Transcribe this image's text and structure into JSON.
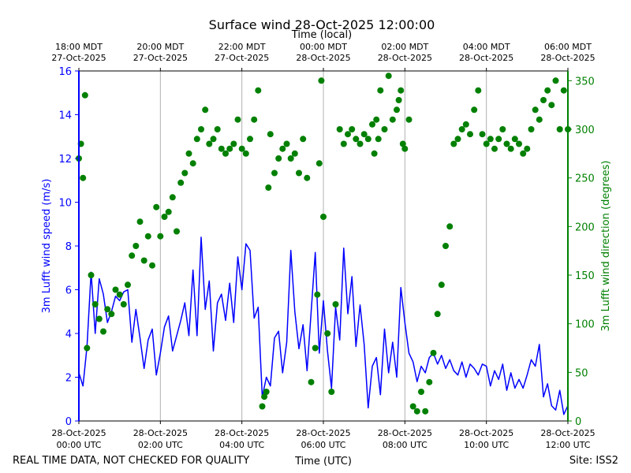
{
  "chart_data": {
    "type": "line",
    "title": "Surface wind 28-Oct-2025 12:00:00",
    "xlabel": "Time (UTC)",
    "top_xlabel": "Time (local)",
    "ylabel_left": "3m Lufft wind speed (m/s)",
    "ylabel_right": "3m Lufft wind direction (degrees)",
    "footer_left": "REAL TIME DATA, NOT CHECKED FOR QUALITY",
    "footer_right": "Site: ISS2",
    "x_range_hours": [
      0,
      12
    ],
    "ylim_left": [
      0,
      16
    ],
    "ylim_right": [
      0,
      360
    ],
    "grid": "vertical",
    "colors": {
      "speed": "#0000ff",
      "direction": "#008000",
      "grid": "#b0b0b0",
      "frame": "#000000"
    },
    "bottom_ticks": [
      {
        "hour": 0,
        "line1": "28-Oct-2025",
        "line2": "00:00 UTC"
      },
      {
        "hour": 2,
        "line1": "28-Oct-2025",
        "line2": "02:00 UTC"
      },
      {
        "hour": 4,
        "line1": "28-Oct-2025",
        "line2": "04:00 UTC"
      },
      {
        "hour": 6,
        "line1": "28-Oct-2025",
        "line2": "06:00 UTC"
      },
      {
        "hour": 8,
        "line1": "28-Oct-2025",
        "line2": "08:00 UTC"
      },
      {
        "hour": 10,
        "line1": "28-Oct-2025",
        "line2": "10:00 UTC"
      },
      {
        "hour": 12,
        "line1": "28-Oct-2025",
        "line2": "12:00 UTC"
      }
    ],
    "top_ticks": [
      {
        "hour": 0,
        "line1": "18:00 MDT",
        "line2": "27-Oct-2025"
      },
      {
        "hour": 2,
        "line1": "20:00 MDT",
        "line2": "27-Oct-2025"
      },
      {
        "hour": 4,
        "line1": "22:00 MDT",
        "line2": "27-Oct-2025"
      },
      {
        "hour": 6,
        "line1": "00:00 MDT",
        "line2": "28-Oct-2025"
      },
      {
        "hour": 8,
        "line1": "02:00 MDT",
        "line2": "28-Oct-2025"
      },
      {
        "hour": 10,
        "line1": "04:00 MDT",
        "line2": "28-Oct-2025"
      },
      {
        "hour": 12,
        "line1": "06:00 MDT",
        "line2": "28-Oct-2025"
      }
    ],
    "left_ticks": [
      0,
      2,
      4,
      6,
      8,
      10,
      12,
      14,
      16
    ],
    "right_ticks": [
      0,
      50,
      100,
      150,
      200,
      250,
      300,
      350
    ],
    "series": [
      {
        "name": "3m Lufft wind speed",
        "axis": "left",
        "style": "line",
        "x": [
          0.0,
          0.1,
          0.2,
          0.3,
          0.4,
          0.5,
          0.6,
          0.7,
          0.8,
          0.9,
          1.0,
          1.1,
          1.2,
          1.3,
          1.4,
          1.5,
          1.6,
          1.7,
          1.8,
          1.9,
          2.0,
          2.1,
          2.2,
          2.3,
          2.4,
          2.5,
          2.6,
          2.7,
          2.8,
          2.9,
          3.0,
          3.1,
          3.2,
          3.3,
          3.4,
          3.5,
          3.6,
          3.7,
          3.8,
          3.9,
          4.0,
          4.1,
          4.2,
          4.3,
          4.4,
          4.5,
          4.6,
          4.7,
          4.8,
          4.9,
          5.0,
          5.1,
          5.2,
          5.3,
          5.4,
          5.5,
          5.6,
          5.7,
          5.8,
          5.9,
          6.0,
          6.1,
          6.2,
          6.3,
          6.4,
          6.5,
          6.6,
          6.7,
          6.8,
          6.9,
          7.0,
          7.1,
          7.2,
          7.3,
          7.4,
          7.5,
          7.6,
          7.7,
          7.8,
          7.9,
          8.0,
          8.1,
          8.2,
          8.3,
          8.4,
          8.5,
          8.6,
          8.7,
          8.8,
          8.9,
          9.0,
          9.1,
          9.2,
          9.3,
          9.4,
          9.5,
          9.6,
          9.7,
          9.8,
          9.9,
          10.0,
          10.1,
          10.2,
          10.3,
          10.4,
          10.5,
          10.6,
          10.7,
          10.8,
          10.9,
          11.0,
          11.1,
          11.2,
          11.3,
          11.4,
          11.5,
          11.6,
          11.7,
          11.8,
          11.9,
          12.0
        ],
        "values": [
          2.2,
          1.6,
          3.4,
          6.8,
          4.0,
          6.5,
          5.8,
          4.5,
          5.0,
          5.7,
          5.5,
          5.9,
          6.0,
          3.6,
          5.1,
          3.8,
          2.4,
          3.7,
          4.2,
          2.1,
          3.1,
          4.3,
          4.8,
          3.2,
          3.9,
          4.6,
          5.4,
          3.9,
          6.9,
          3.9,
          8.4,
          5.1,
          6.4,
          3.2,
          5.4,
          5.8,
          4.6,
          6.3,
          4.5,
          7.5,
          6.0,
          8.1,
          7.8,
          4.7,
          5.2,
          1.1,
          2.0,
          1.6,
          3.8,
          4.1,
          2.2,
          3.6,
          7.8,
          5.0,
          3.3,
          4.4,
          2.3,
          5.0,
          7.7,
          3.1,
          5.5,
          3.2,
          1.5,
          5.2,
          3.7,
          7.9,
          4.9,
          6.6,
          3.4,
          5.3,
          3.5,
          0.6,
          2.5,
          2.9,
          1.2,
          4.2,
          2.2,
          3.6,
          2.0,
          6.1,
          4.5,
          3.1,
          2.7,
          1.8,
          2.5,
          2.2,
          2.9,
          3.1,
          2.6,
          3.0,
          2.4,
          2.8,
          2.3,
          2.1,
          2.7,
          2.0,
          2.6,
          2.4,
          2.1,
          2.6,
          2.5,
          1.6,
          2.3,
          1.9,
          2.6,
          1.4,
          2.2,
          1.5,
          1.9,
          1.5,
          2.1,
          2.8,
          2.5,
          3.5,
          1.1,
          1.7,
          0.7,
          0.5,
          1.4,
          0.3,
          0.7
        ]
      },
      {
        "name": "3m Lufft wind direction",
        "axis": "right",
        "style": "markers",
        "x": [
          0.0,
          0.05,
          0.1,
          0.15,
          0.2,
          0.3,
          0.4,
          0.5,
          0.6,
          0.7,
          0.8,
          0.9,
          1.0,
          1.1,
          1.2,
          1.3,
          1.4,
          1.5,
          1.6,
          1.7,
          1.8,
          1.9,
          2.0,
          2.1,
          2.2,
          2.3,
          2.4,
          2.5,
          2.6,
          2.7,
          2.8,
          2.9,
          3.0,
          3.1,
          3.2,
          3.3,
          3.4,
          3.5,
          3.6,
          3.7,
          3.8,
          3.9,
          4.0,
          4.1,
          4.2,
          4.3,
          4.4,
          4.5,
          4.55,
          4.6,
          4.65,
          4.7,
          4.8,
          4.9,
          5.0,
          5.1,
          5.2,
          5.3,
          5.4,
          5.5,
          5.6,
          5.7,
          5.8,
          5.85,
          5.9,
          5.95,
          6.0,
          6.1,
          6.2,
          6.3,
          6.4,
          6.5,
          6.6,
          6.7,
          6.8,
          6.9,
          7.0,
          7.1,
          7.2,
          7.25,
          7.3,
          7.35,
          7.4,
          7.5,
          7.6,
          7.7,
          7.8,
          7.85,
          7.9,
          7.95,
          8.0,
          8.1,
          8.2,
          8.3,
          8.4,
          8.5,
          8.6,
          8.7,
          8.8,
          8.9,
          9.0,
          9.1,
          9.2,
          9.3,
          9.4,
          9.5,
          9.6,
          9.7,
          9.8,
          9.9,
          10.0,
          10.1,
          10.2,
          10.3,
          10.4,
          10.5,
          10.6,
          10.7,
          10.8,
          10.9,
          11.0,
          11.1,
          11.2,
          11.3,
          11.4,
          11.5,
          11.6,
          11.7,
          11.8,
          11.9,
          12.0
        ],
        "values": [
          270,
          285,
          250,
          335,
          75,
          150,
          120,
          105,
          92,
          115,
          110,
          135,
          130,
          120,
          140,
          170,
          180,
          205,
          165,
          190,
          160,
          220,
          190,
          210,
          215,
          230,
          195,
          245,
          255,
          275,
          265,
          290,
          300,
          320,
          285,
          290,
          300,
          280,
          275,
          280,
          285,
          310,
          280,
          275,
          290,
          310,
          340,
          15,
          25,
          30,
          240,
          295,
          255,
          270,
          280,
          285,
          270,
          275,
          255,
          290,
          250,
          40,
          75,
          130,
          265,
          350,
          210,
          90,
          30,
          120,
          300,
          285,
          295,
          300,
          290,
          285,
          295,
          290,
          305,
          275,
          310,
          290,
          340,
          300,
          355,
          310,
          320,
          330,
          340,
          285,
          280,
          310,
          15,
          10,
          30,
          10,
          40,
          70,
          110,
          140,
          180,
          200,
          285,
          290,
          300,
          305,
          295,
          320,
          340,
          295,
          285,
          290,
          280,
          290,
          300,
          285,
          280,
          290,
          285,
          275,
          280,
          300,
          320,
          310,
          330,
          340,
          325,
          350,
          300,
          340,
          300
        ]
      }
    ]
  }
}
